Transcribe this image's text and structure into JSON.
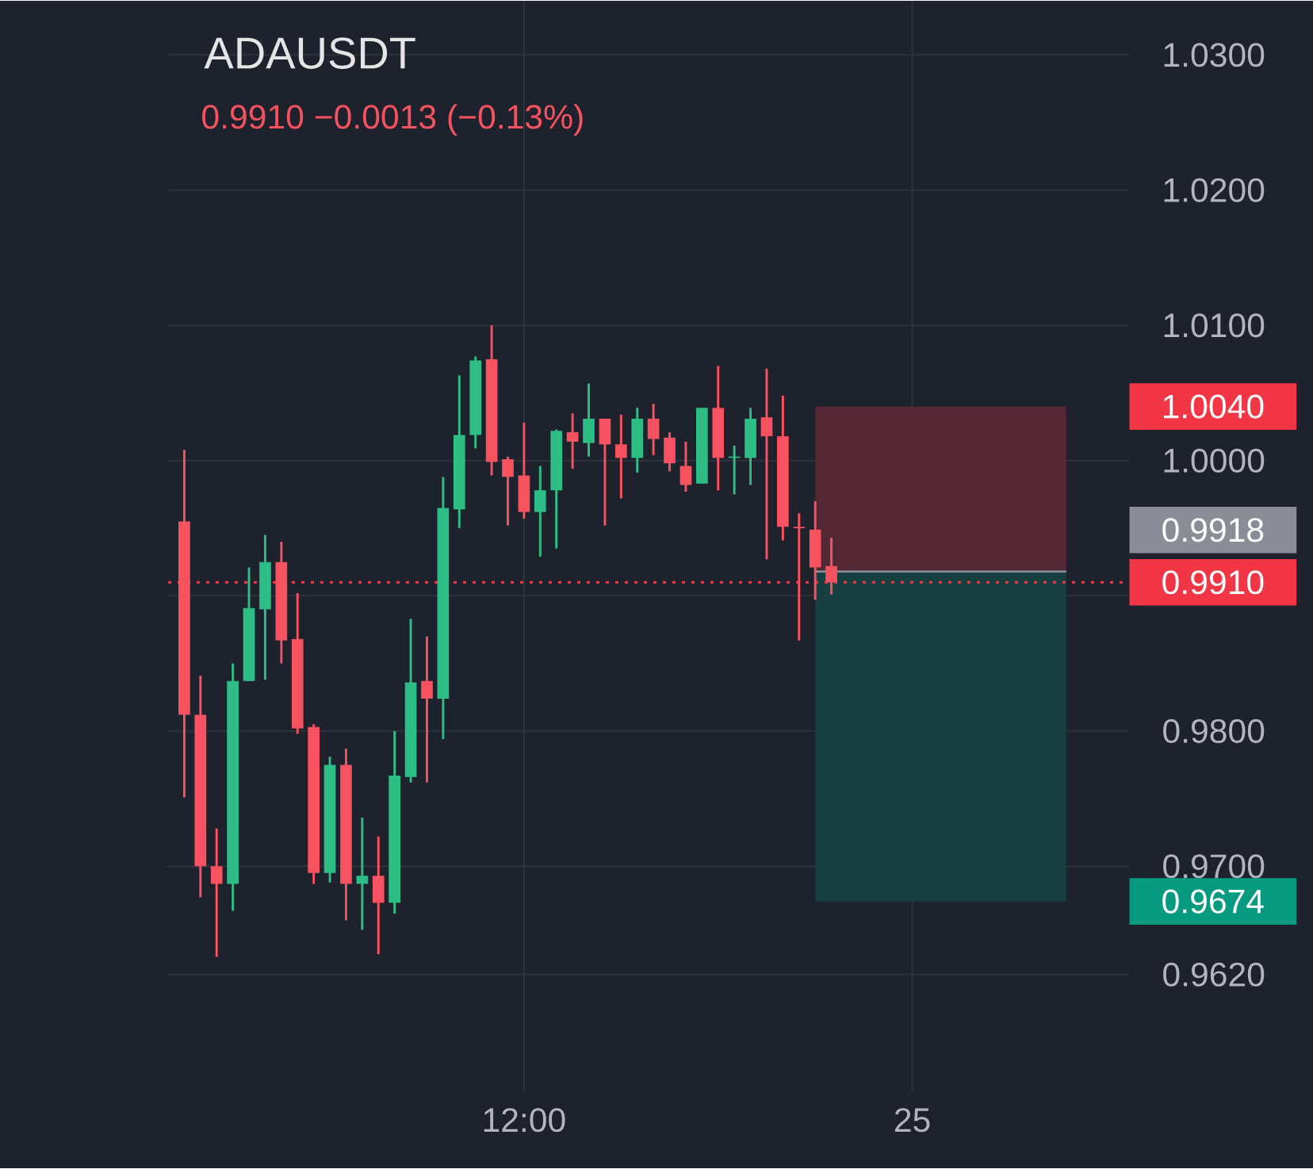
{
  "chart_data": {
    "type": "candlestick",
    "title": "ADAUSDT",
    "subtitle": "0.9910 −0.0013 (−0.13%)",
    "categories": [
      null,
      null,
      null,
      null,
      null,
      null,
      null,
      null,
      null,
      null,
      null,
      null,
      null,
      null,
      null,
      null,
      null,
      null,
      null,
      null,
      null,
      "12:00",
      null,
      null,
      null,
      null,
      null,
      null,
      null,
      null,
      null,
      null,
      null,
      null,
      null,
      null,
      null,
      null,
      null,
      null,
      null,
      null,
      null,
      null,
      null,
      "25",
      null,
      null,
      null,
      null,
      null,
      null,
      null,
      null,
      null,
      null,
      null,
      null,
      null
    ],
    "ohlc": [
      [
        0.9955,
        1.0008,
        0.9751,
        0.9812
      ],
      [
        0.9812,
        0.9841,
        0.9677,
        0.97
      ],
      [
        0.97,
        0.9728,
        0.9633,
        0.9687
      ],
      [
        0.9687,
        0.985,
        0.9667,
        0.9837
      ],
      [
        0.9837,
        0.9921,
        0.9837,
        0.9891
      ],
      [
        0.989,
        0.9945,
        0.9838,
        0.9925
      ],
      [
        0.9925,
        0.994,
        0.985,
        0.9867
      ],
      [
        0.9868,
        0.9902,
        0.9798,
        0.9802
      ],
      [
        0.9803,
        0.9805,
        0.9687,
        0.9695
      ],
      [
        0.9695,
        0.9781,
        0.9688,
        0.9775
      ],
      [
        0.9775,
        0.9787,
        0.966,
        0.9687
      ],
      [
        0.9687,
        0.9736,
        0.9653,
        0.9693
      ],
      [
        0.9693,
        0.9722,
        0.9635,
        0.9673
      ],
      [
        0.9673,
        0.98,
        0.9665,
        0.9767
      ],
      [
        0.9766,
        0.9883,
        0.9762,
        0.9836
      ],
      [
        0.9837,
        0.987,
        0.9762,
        0.9824
      ],
      [
        0.9824,
        0.9988,
        0.9794,
        0.9965
      ],
      [
        0.9964,
        1.0063,
        0.995,
        1.0019
      ],
      [
        1.0019,
        1.0077,
        1.0009,
        1.0074
      ],
      [
        1.0075,
        1.01,
        0.9989,
        0.9999
      ],
      [
        1.0001,
        1.0003,
        0.9952,
        0.9988
      ],
      [
        0.9989,
        1.0028,
        0.9957,
        0.9962
      ],
      [
        0.9962,
        0.9996,
        0.9929,
        0.9978
      ],
      [
        0.9978,
        1.0023,
        0.9935,
        1.0022
      ],
      [
        1.0021,
        1.0035,
        0.9994,
        1.0014
      ],
      [
        1.0013,
        1.0057,
        1.0003,
        1.0031
      ],
      [
        1.0031,
        1.0031,
        0.9952,
        1.0012
      ],
      [
        1.0012,
        1.0034,
        0.9972,
        1.0002
      ],
      [
        1.0002,
        1.0039,
        0.9991,
        1.0031
      ],
      [
        1.0031,
        1.0042,
        1.0004,
        1.0016
      ],
      [
        1.0017,
        1.0021,
        0.9992,
        0.9998
      ],
      [
        0.9996,
        1.0014,
        0.9977,
        0.9982
      ],
      [
        0.9983,
        1.0039,
        0.9983,
        1.0039
      ],
      [
        1.0039,
        1.007,
        0.9978,
        1.0002
      ],
      [
        1.0002,
        1.0011,
        0.9975,
        1.0003
      ],
      [
        1.0002,
        1.0039,
        0.9982,
        1.0031
      ],
      [
        1.0032,
        1.0068,
        0.9927,
        1.0018
      ],
      [
        1.0018,
        1.0048,
        0.9941,
        0.9951
      ],
      [
        0.9951,
        0.9961,
        0.9867,
        0.995
      ],
      [
        0.9949,
        0.997,
        0.9897,
        0.9921
      ],
      [
        0.9922,
        0.9943,
        0.9901,
        0.991
      ],
      null,
      null,
      null,
      null,
      null,
      null,
      null,
      null,
      null,
      null,
      null,
      null,
      null,
      null,
      null,
      null,
      null,
      null
    ],
    "colors": [
      "#f7525f",
      "#f7525f",
      "#f7525f",
      "#2ebd85",
      "#2ebd85",
      "#2ebd85",
      "#f7525f",
      "#f7525f",
      "#f7525f",
      "#2ebd85",
      "#f7525f",
      "#2ebd85",
      "#f7525f",
      "#2ebd85",
      "#2ebd85",
      "#f7525f",
      "#2ebd85",
      "#2ebd85",
      "#2ebd85",
      "#f7525f",
      "#f7525f",
      "#f7525f",
      "#2ebd85",
      "#2ebd85",
      "#f7525f",
      "#2ebd85",
      "#f7525f",
      "#f7525f",
      "#2ebd85",
      "#f7525f",
      "#f7525f",
      "#f7525f",
      "#2ebd85",
      "#f7525f",
      "#2ebd85",
      "#2ebd85",
      "#f7525f",
      "#f7525f",
      "#f7525f",
      "#f7525f",
      "#f7525f",
      null,
      null,
      null,
      null,
      null,
      null,
      null,
      null,
      null,
      null,
      null,
      null,
      null,
      null,
      null,
      null,
      null,
      null
    ],
    "ylim": [
      0.9533,
      1.034
    ],
    "yticks": [
      {
        "value": 0.962,
        "label": "0.9620"
      },
      {
        "value": 0.97,
        "label": "0.9700"
      },
      {
        "value": 0.98,
        "label": "0.9800"
      },
      {
        "value": 0.99,
        "label": null
      },
      {
        "value": 1.0,
        "label": "1.0000"
      },
      {
        "value": 1.01,
        "label": "1.0100"
      },
      {
        "value": 1.02,
        "label": "1.0200"
      },
      {
        "value": 1.03,
        "label": "1.0300"
      }
    ],
    "grid": true,
    "ref_lines": [
      {
        "axis": "y",
        "value": 0.9918,
        "label": "0.9918",
        "color": "#8a8d96",
        "line_style": "solid"
      },
      {
        "axis": "y",
        "value": 0.991,
        "label": "0.9910",
        "color": "#f23645",
        "line_style": "dotted"
      }
    ],
    "bands": [
      {
        "axis": "y",
        "from": 0.9918,
        "to": 1.004,
        "label": "1.0040",
        "color": "#532733"
      },
      {
        "axis": "y",
        "from": 0.9918,
        "to": 0.9674,
        "label": "0.9674",
        "color": "#184042"
      }
    ]
  }
}
